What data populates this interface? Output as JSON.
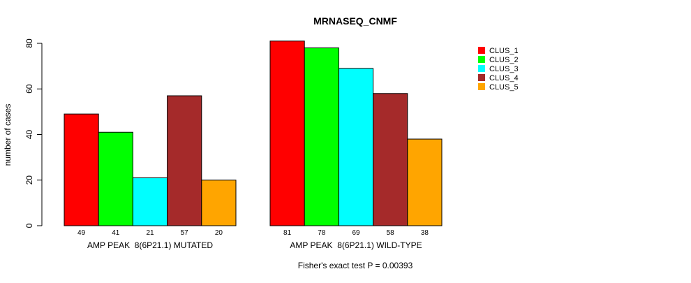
{
  "chart_data": {
    "type": "bar",
    "title": "MRNASEQ_CNMF",
    "ylabel": "number of cases",
    "xlabel": "",
    "ylim": [
      0,
      80
    ],
    "yticks": [
      0,
      20,
      40,
      60,
      80
    ],
    "categories": [
      "AMP PEAK  8(6P21.1) MUTATED",
      "AMP PEAK  8(6P21.1) WILD-TYPE"
    ],
    "series": [
      {
        "name": "CLUS_1",
        "color": "#ff0000",
        "values": [
          49,
          81
        ]
      },
      {
        "name": "CLUS_2",
        "color": "#00ff00",
        "values": [
          41,
          78
        ]
      },
      {
        "name": "CLUS_3",
        "color": "#00ffff",
        "values": [
          21,
          69
        ]
      },
      {
        "name": "CLUS_4",
        "color": "#a52a2a",
        "values": [
          57,
          58
        ]
      },
      {
        "name": "CLUS_5",
        "color": "#ffa500",
        "values": [
          20,
          38
        ]
      }
    ],
    "legend_position": "top-right",
    "footnote": "Fisher's exact test P = 0.00393"
  }
}
